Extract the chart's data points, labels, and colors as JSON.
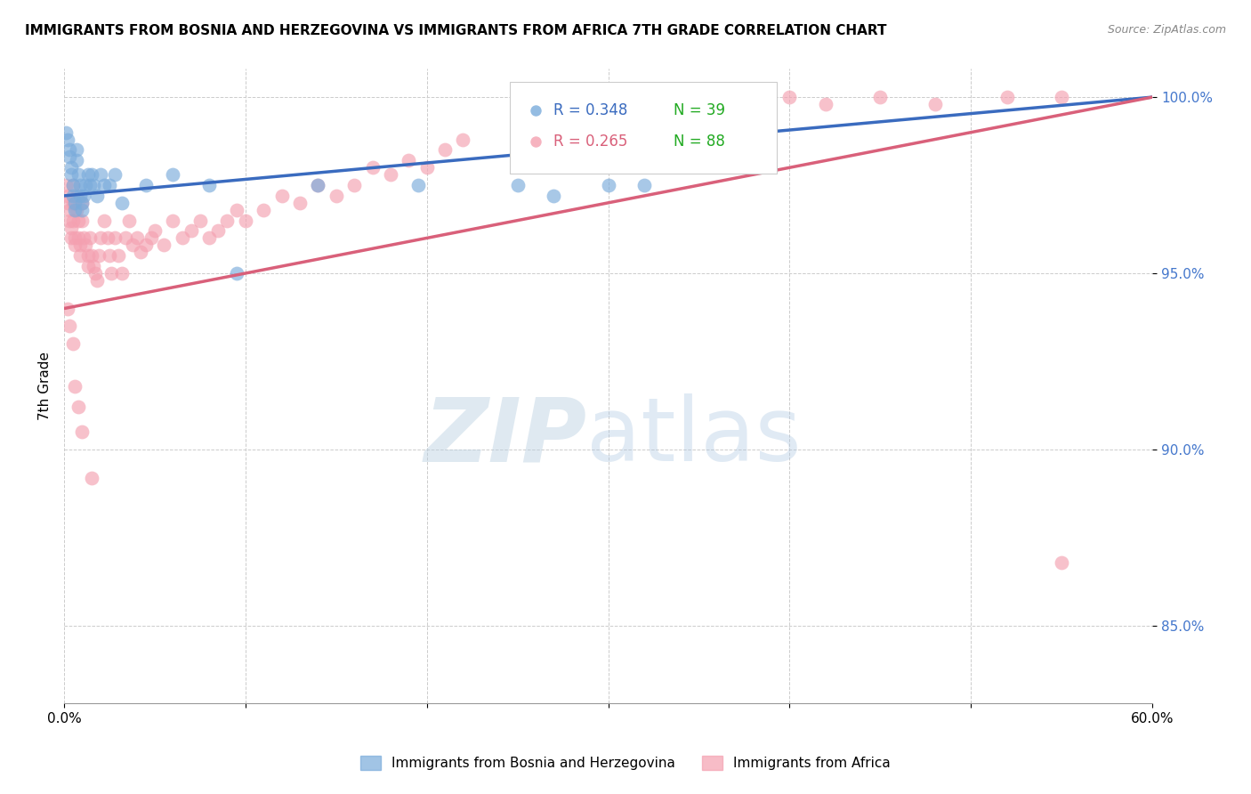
{
  "title": "IMMIGRANTS FROM BOSNIA AND HERZEGOVINA VS IMMIGRANTS FROM AFRICA 7TH GRADE CORRELATION CHART",
  "source": "Source: ZipAtlas.com",
  "ylabel": "7th Grade",
  "xlim": [
    0.0,
    0.6
  ],
  "ylim": [
    0.828,
    1.008
  ],
  "yticks": [
    0.85,
    0.9,
    0.95,
    1.0
  ],
  "ytick_labels": [
    "85.0%",
    "90.0%",
    "95.0%",
    "100.0%"
  ],
  "xticks": [
    0.0,
    0.1,
    0.2,
    0.3,
    0.4,
    0.5,
    0.6
  ],
  "xtick_labels": [
    "0.0%",
    "",
    "",
    "",
    "",
    "",
    "60.0%"
  ],
  "legend_bosnia_r": "R = 0.348",
  "legend_bosnia_n": "N = 39",
  "legend_africa_r": "R = 0.265",
  "legend_africa_n": "N = 88",
  "color_bosnia": "#7aabdb",
  "color_africa": "#f4a0b0",
  "trendline_bosnia": "#3a6bbf",
  "trendline_africa": "#d9607a",
  "bosnia_x": [
    0.001,
    0.002,
    0.003,
    0.003,
    0.004,
    0.004,
    0.005,
    0.005,
    0.006,
    0.006,
    0.007,
    0.007,
    0.008,
    0.009,
    0.009,
    0.01,
    0.01,
    0.011,
    0.012,
    0.013,
    0.014,
    0.015,
    0.016,
    0.018,
    0.02,
    0.022,
    0.025,
    0.028,
    0.032,
    0.045,
    0.06,
    0.08,
    0.095,
    0.14,
    0.195,
    0.25,
    0.27,
    0.3,
    0.32
  ],
  "bosnia_y": [
    0.99,
    0.988,
    0.985,
    0.983,
    0.98,
    0.978,
    0.975,
    0.972,
    0.97,
    0.968,
    0.985,
    0.982,
    0.978,
    0.975,
    0.972,
    0.97,
    0.968,
    0.972,
    0.975,
    0.978,
    0.975,
    0.978,
    0.975,
    0.972,
    0.978,
    0.975,
    0.975,
    0.978,
    0.97,
    0.975,
    0.978,
    0.975,
    0.95,
    0.975,
    0.975,
    0.975,
    0.972,
    0.975,
    0.975
  ],
  "africa_x": [
    0.001,
    0.002,
    0.002,
    0.003,
    0.003,
    0.004,
    0.004,
    0.005,
    0.005,
    0.005,
    0.006,
    0.006,
    0.007,
    0.007,
    0.008,
    0.008,
    0.009,
    0.009,
    0.01,
    0.01,
    0.011,
    0.012,
    0.013,
    0.013,
    0.014,
    0.015,
    0.016,
    0.017,
    0.018,
    0.019,
    0.02,
    0.022,
    0.024,
    0.025,
    0.026,
    0.028,
    0.03,
    0.032,
    0.034,
    0.036,
    0.038,
    0.04,
    0.042,
    0.045,
    0.048,
    0.05,
    0.055,
    0.06,
    0.065,
    0.07,
    0.075,
    0.08,
    0.085,
    0.09,
    0.095,
    0.1,
    0.11,
    0.12,
    0.13,
    0.14,
    0.15,
    0.16,
    0.17,
    0.18,
    0.19,
    0.2,
    0.21,
    0.22,
    0.25,
    0.28,
    0.3,
    0.32,
    0.35,
    0.38,
    0.4,
    0.42,
    0.45,
    0.48,
    0.52,
    0.55,
    0.002,
    0.003,
    0.005,
    0.006,
    0.008,
    0.01,
    0.015,
    0.55
  ],
  "africa_y": [
    0.975,
    0.972,
    0.97,
    0.968,
    0.965,
    0.963,
    0.96,
    0.975,
    0.97,
    0.965,
    0.96,
    0.958,
    0.972,
    0.968,
    0.965,
    0.96,
    0.958,
    0.955,
    0.97,
    0.965,
    0.96,
    0.958,
    0.955,
    0.952,
    0.96,
    0.955,
    0.952,
    0.95,
    0.948,
    0.955,
    0.96,
    0.965,
    0.96,
    0.955,
    0.95,
    0.96,
    0.955,
    0.95,
    0.96,
    0.965,
    0.958,
    0.96,
    0.956,
    0.958,
    0.96,
    0.962,
    0.958,
    0.965,
    0.96,
    0.962,
    0.965,
    0.96,
    0.962,
    0.965,
    0.968,
    0.965,
    0.968,
    0.972,
    0.97,
    0.975,
    0.972,
    0.975,
    0.98,
    0.978,
    0.982,
    0.98,
    0.985,
    0.988,
    0.99,
    0.992,
    0.995,
    0.995,
    0.998,
    0.998,
    1.0,
    0.998,
    1.0,
    0.998,
    1.0,
    1.0,
    0.94,
    0.935,
    0.93,
    0.918,
    0.912,
    0.905,
    0.892,
    0.868
  ]
}
